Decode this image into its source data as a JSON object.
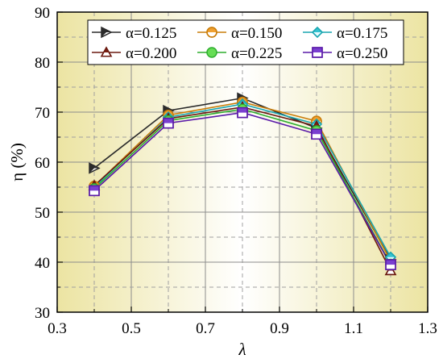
{
  "chart_data": {
    "type": "line",
    "x": [
      0.4,
      0.6,
      0.8,
      1.0,
      1.2
    ],
    "xlabel": "λ",
    "ylabel": "η (%)",
    "xlim": [
      0.3,
      1.3
    ],
    "ylim": [
      30,
      90
    ],
    "xticks": [
      "0.3",
      "0.5",
      "0.7",
      "0.9",
      "1.1",
      "1.3"
    ],
    "yticks": [
      "30",
      "40",
      "50",
      "60",
      "70",
      "80",
      "90"
    ],
    "grid": true,
    "legend_position": "top",
    "background": {
      "edge": "#ece4a2",
      "center": "#ffffff"
    },
    "series": [
      {
        "name": "α=0.125",
        "color": "#2b2b2b",
        "fill": "#2b2b2b",
        "marker": "triangle-right",
        "values": [
          58.8,
          70.3,
          72.8,
          66.8,
          40.5
        ]
      },
      {
        "name": "α=0.150",
        "color": "#c97d0a",
        "fill": "#f0a030",
        "marker": "circle-half",
        "values": [
          55.2,
          69.4,
          72.0,
          68.2,
          40.2
        ]
      },
      {
        "name": "α=0.175",
        "color": "#1aa6b0",
        "fill": "#35c3d0",
        "marker": "diamond",
        "values": [
          55.0,
          69.0,
          71.6,
          67.6,
          41.0
        ]
      },
      {
        "name": "α=0.200",
        "color": "#6b1a10",
        "fill": "#7a1f12",
        "marker": "triangle-up-split",
        "values": [
          55.3,
          68.7,
          71.0,
          67.2,
          38.3
        ]
      },
      {
        "name": "α=0.225",
        "color": "#2eae2e",
        "fill": "#66dd55",
        "marker": "circle",
        "values": [
          54.7,
          68.3,
          70.6,
          66.3,
          39.6
        ]
      },
      {
        "name": "α=0.250",
        "color": "#5a1aa8",
        "fill": "#7a3fd0",
        "marker": "square-half",
        "values": [
          54.3,
          67.8,
          69.9,
          65.6,
          39.5
        ]
      }
    ]
  }
}
